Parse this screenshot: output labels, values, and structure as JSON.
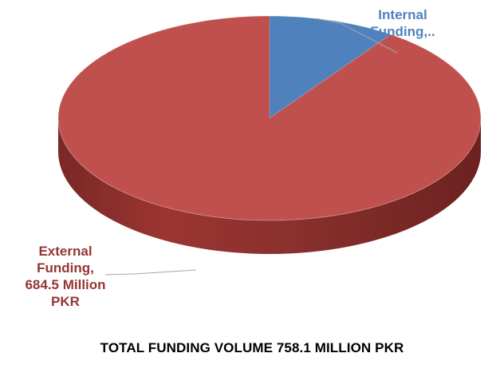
{
  "chart_data": {
    "type": "pie",
    "title": "TOTAL FUNDING VOLUME 758.1 MILLION PKR",
    "slices": [
      {
        "name": "Internal Funding",
        "value": 73.6,
        "label_lines": [
          "Internal",
          "Funding,.."
        ],
        "color": "#4f81bd",
        "label_color": "#4f81bd"
      },
      {
        "name": "External Funding",
        "value": 684.5,
        "label_lines": [
          "External",
          "Funding,",
          "684.5 Million",
          "PKR"
        ],
        "color": "#c0504d",
        "label_color": "#943634"
      }
    ],
    "legend": "none",
    "style": "3d"
  }
}
